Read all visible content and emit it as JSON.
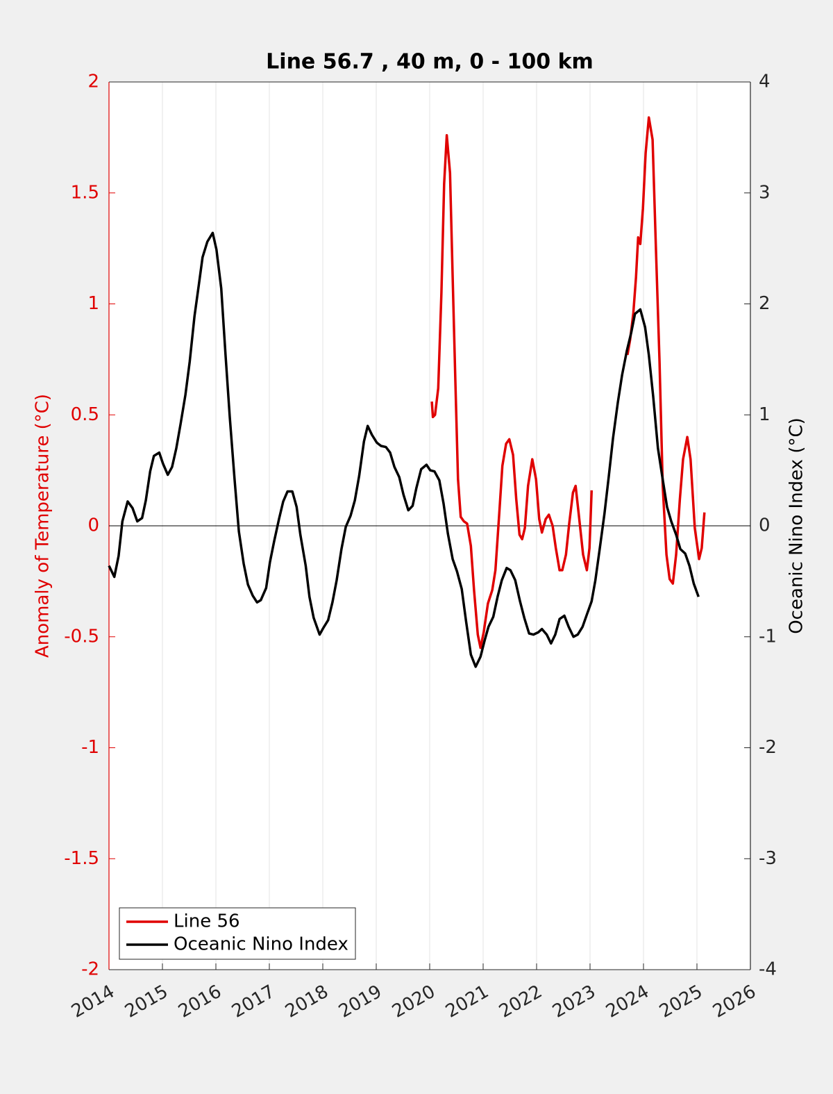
{
  "chart_data": {
    "type": "line",
    "title": "Line 56.7 , 40 m, 0 - 100 km",
    "ylabel": "Anomaly of Temperature (°C)",
    "y2label": "Oceanic Nino Index (°C)",
    "xlim": [
      2014,
      2026
    ],
    "xticks": [
      2014,
      2015,
      2016,
      2017,
      2018,
      2019,
      2020,
      2021,
      2022,
      2023,
      2024,
      2025,
      2026
    ],
    "ylim": [
      -2,
      2
    ],
    "yticks": [
      -2,
      -1.5,
      -1,
      -0.5,
      0,
      0.5,
      1,
      1.5,
      2
    ],
    "ycolor": "#e00000",
    "y2lim": [
      -4,
      4
    ],
    "y2ticks": [
      -4,
      -3,
      -2,
      -1,
      0,
      1,
      2,
      3,
      4
    ],
    "grid": "x",
    "zero_line": true,
    "legend": "lower left",
    "series": [
      {
        "name": "Line 56",
        "color": "#e00000",
        "x": [
          2020.04,
          2020.06,
          2020.1,
          2020.16,
          2020.22,
          2020.27,
          2020.32,
          2020.38,
          2020.43,
          2020.48,
          2020.53,
          2020.58,
          2020.64,
          2020.7,
          2020.77,
          2020.83,
          2020.9,
          2020.95,
          2021.01,
          2021.09,
          2021.17,
          2021.23,
          2021.3,
          2021.36,
          2021.43,
          2021.49,
          2021.56,
          2021.62,
          2021.68,
          2021.73,
          2021.78,
          2021.84,
          2021.92,
          2021.99,
          2022.05,
          2022.1,
          2022.17,
          2022.23,
          2022.3,
          2022.36,
          2022.43,
          2022.48,
          2022.55,
          2022.61,
          2022.68,
          2022.73,
          2022.79,
          2022.87,
          2022.94,
          2022.99,
          2023.03,
          null,
          2023.7,
          2023.75,
          2023.81,
          2023.86,
          2023.9,
          2023.94,
          2023.99,
          2024.04,
          2024.1,
          2024.17,
          2024.23,
          2024.3,
          2024.36,
          2024.43,
          2024.49,
          2024.55,
          2024.61,
          2024.68,
          2024.74,
          2024.82,
          2024.88,
          2024.96,
          2025.04,
          2025.09,
          2025.14
        ],
        "values": [
          0.56,
          0.49,
          0.5,
          0.62,
          1.05,
          1.54,
          1.76,
          1.59,
          1.12,
          0.65,
          0.21,
          0.04,
          0.02,
          0.01,
          -0.09,
          -0.29,
          -0.49,
          -0.55,
          -0.48,
          -0.35,
          -0.29,
          -0.2,
          0.05,
          0.27,
          0.37,
          0.39,
          0.32,
          0.12,
          -0.04,
          -0.06,
          -0.01,
          0.18,
          0.3,
          0.21,
          0.03,
          -0.03,
          0.03,
          0.05,
          0,
          -0.1,
          -0.2,
          -0.2,
          -0.13,
          0.01,
          0.15,
          0.18,
          0.05,
          -0.13,
          -0.2,
          -0.1,
          0.16,
          null,
          0.77,
          0.84,
          0.96,
          1.12,
          1.3,
          1.27,
          1.43,
          1.68,
          1.84,
          1.74,
          1.27,
          0.74,
          0.18,
          -0.13,
          -0.24,
          -0.26,
          -0.13,
          0.12,
          0.3,
          0.4,
          0.3,
          -0.01,
          -0.15,
          -0.1,
          0.06
        ]
      },
      {
        "name": "Oceanic Nino Index",
        "color": "#000000",
        "axis": "y2",
        "x": [
          2014.0,
          2014.1,
          2014.18,
          2014.25,
          2014.35,
          2014.44,
          2014.53,
          2014.62,
          2014.69,
          2014.77,
          2014.84,
          2014.94,
          2015.01,
          2015.1,
          2015.18,
          2015.26,
          2015.34,
          2015.43,
          2015.51,
          2015.6,
          2015.68,
          2015.75,
          2015.84,
          2015.94,
          2016.01,
          2016.1,
          2016.18,
          2016.26,
          2016.35,
          2016.43,
          2016.52,
          2016.6,
          2016.69,
          2016.77,
          2016.84,
          2016.94,
          2017.01,
          2017.09,
          2017.18,
          2017.26,
          2017.34,
          2017.43,
          2017.51,
          2017.58,
          2017.68,
          2017.75,
          2017.83,
          2017.94,
          2018.01,
          2018.1,
          2018.18,
          2018.26,
          2018.35,
          2018.43,
          2018.52,
          2018.6,
          2018.68,
          2018.77,
          2018.84,
          2018.92,
          2019.01,
          2019.09,
          2019.18,
          2019.26,
          2019.34,
          2019.43,
          2019.51,
          2019.6,
          2019.68,
          2019.75,
          2019.84,
          2019.94,
          2020.01,
          2020.09,
          2020.18,
          2020.26,
          2020.34,
          2020.43,
          2020.51,
          2020.6,
          2020.68,
          2020.77,
          2020.86,
          2020.95,
          2021.03,
          2021.1,
          2021.19,
          2021.27,
          2021.35,
          2021.44,
          2021.51,
          2021.6,
          2021.69,
          2021.77,
          2021.86,
          2021.94,
          2022.03,
          2022.1,
          2022.19,
          2022.27,
          2022.35,
          2022.43,
          2022.52,
          2022.6,
          2022.69,
          2022.77,
          2022.86,
          2022.94,
          2023.03,
          2023.1,
          2023.18,
          2023.27,
          2023.35,
          2023.43,
          2023.52,
          2023.6,
          2023.69,
          2023.77,
          2023.84,
          2023.94,
          2024.03,
          2024.1,
          2024.18,
          2024.27,
          2024.35,
          2024.44,
          2024.52,
          2024.61,
          2024.69,
          2024.78,
          2024.86,
          2024.94,
          2025.03
        ],
        "values": [
          -0.36,
          -0.46,
          -0.27,
          0.04,
          0.22,
          0.16,
          0.04,
          0.07,
          0.23,
          0.49,
          0.63,
          0.66,
          0.56,
          0.46,
          0.53,
          0.7,
          0.92,
          1.18,
          1.48,
          1.89,
          2.17,
          2.42,
          2.56,
          2.64,
          2.49,
          2.14,
          1.54,
          0.98,
          0.42,
          -0.05,
          -0.34,
          -0.53,
          -0.63,
          -0.69,
          -0.67,
          -0.56,
          -0.33,
          -0.14,
          0.06,
          0.22,
          0.31,
          0.31,
          0.17,
          -0.08,
          -0.36,
          -0.64,
          -0.83,
          -0.98,
          -0.92,
          -0.85,
          -0.69,
          -0.49,
          -0.21,
          -0.01,
          0.09,
          0.23,
          0.45,
          0.76,
          0.9,
          0.82,
          0.75,
          0.72,
          0.71,
          0.66,
          0.53,
          0.44,
          0.28,
          0.14,
          0.18,
          0.34,
          0.51,
          0.55,
          0.5,
          0.49,
          0.41,
          0.2,
          -0.07,
          -0.3,
          -0.41,
          -0.57,
          -0.86,
          -1.16,
          -1.27,
          -1.18,
          -1.03,
          -0.91,
          -0.82,
          -0.64,
          -0.49,
          -0.38,
          -0.4,
          -0.49,
          -0.68,
          -0.83,
          -0.97,
          -0.98,
          -0.96,
          -0.93,
          -0.98,
          -1.06,
          -0.98,
          -0.84,
          -0.81,
          -0.91,
          -1.0,
          -0.98,
          -0.91,
          -0.8,
          -0.68,
          -0.49,
          -0.21,
          0.11,
          0.44,
          0.79,
          1.11,
          1.36,
          1.58,
          1.74,
          1.91,
          1.95,
          1.79,
          1.54,
          1.17,
          0.7,
          0.45,
          0.17,
          0.04,
          -0.08,
          -0.21,
          -0.25,
          -0.36,
          -0.52,
          -0.64
        ]
      }
    ]
  }
}
